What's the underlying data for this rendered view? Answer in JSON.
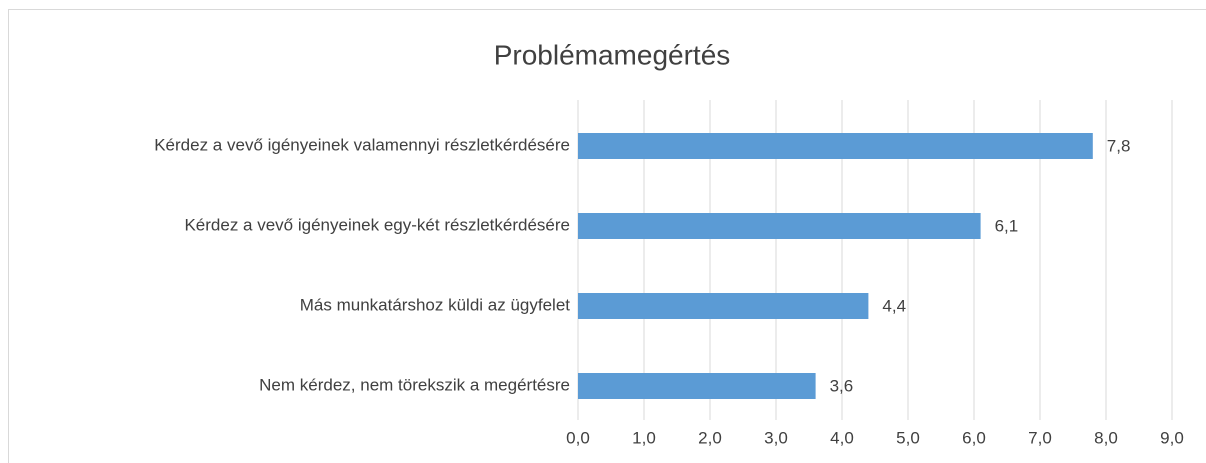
{
  "chart_data": {
    "type": "bar",
    "orientation": "horizontal",
    "title": "Problémamegértés",
    "categories": [
      "Kérdez a vevő igényeinek valamennyi részletkérdésére",
      "Kérdez a vevő igényeinek egy-két részletkérdésére",
      "Más munkatárshoz küldi az ügyfelet",
      "Nem kérdez, nem törekszik a megértésre"
    ],
    "values": [
      7.8,
      6.1,
      4.4,
      3.6
    ],
    "value_labels": [
      "7,8",
      "6,1",
      "4,4",
      "3,6"
    ],
    "color": "#5b9bd5",
    "xlim": [
      0,
      9
    ],
    "xticks": [
      {
        "value": 0,
        "label": "0,0"
      },
      {
        "value": 1,
        "label": "1,0"
      },
      {
        "value": 2,
        "label": "2,0"
      },
      {
        "value": 3,
        "label": "3,0"
      },
      {
        "value": 4,
        "label": "4,0"
      },
      {
        "value": 5,
        "label": "5,0"
      },
      {
        "value": 6,
        "label": "6,0"
      },
      {
        "value": 7,
        "label": "7,0"
      },
      {
        "value": 8,
        "label": "8,0"
      },
      {
        "value": 9,
        "label": "9,0"
      }
    ],
    "grid": true
  }
}
